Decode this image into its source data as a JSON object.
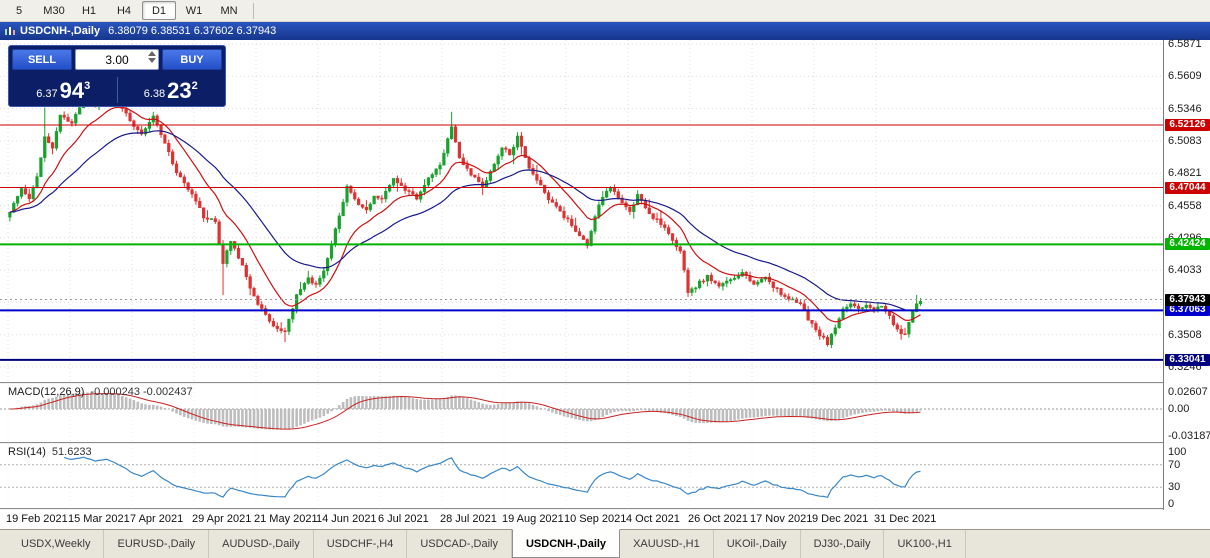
{
  "toolbar": {
    "timeframes": [
      {
        "label": "5",
        "active": false
      },
      {
        "label": "M30",
        "active": false
      },
      {
        "label": "H1",
        "active": false
      },
      {
        "label": "H4",
        "active": false
      },
      {
        "label": "D1",
        "active": true
      },
      {
        "label": "W1",
        "active": false
      },
      {
        "label": "MN",
        "active": false
      }
    ]
  },
  "chart_window": {
    "title": "USDCNH-,Daily",
    "ohlc": "6.38079 6.38531 6.37602 6.37943"
  },
  "trade_panel": {
    "sell_label": "SELL",
    "buy_label": "BUY",
    "volume": "3.00",
    "bid_small": "6.37",
    "bid_big": "94",
    "bid_sup": "3",
    "ask_small": "6.38",
    "ask_big": "23",
    "ask_sup": "2"
  },
  "price_axis": {
    "ticks": [
      "6.5871",
      "6.5609",
      "6.5346",
      "6.5083",
      "6.4821",
      "6.4558",
      "6.4296",
      "6.4033",
      "6.3771",
      "6.3508",
      "6.3246"
    ]
  },
  "levels": [
    {
      "price": 6.52126,
      "label": "6.52126",
      "color": "#cc0000",
      "width": 1
    },
    {
      "price": 6.47044,
      "label": "6.47044",
      "color": "#cc0000",
      "width": 1
    },
    {
      "price": 6.42424,
      "label": "6.42424",
      "color": "#00b400",
      "width": 2
    },
    {
      "price": 6.37063,
      "label": "6.37063",
      "color": "#0000cc",
      "width": 2
    },
    {
      "price": 6.33041,
      "label": "6.33041",
      "color": "#000080",
      "width": 2
    }
  ],
  "current_price": {
    "price": 6.37943,
    "label": "6.37943",
    "color": "#000000"
  },
  "macd": {
    "title": "MACD(12,26,9)",
    "values": "-0.000243 -0.002437",
    "axis": [
      "0.02607",
      "0.00",
      "-0.03187"
    ]
  },
  "rsi": {
    "title": "RSI(14)",
    "value": "51.6233",
    "axis": [
      "100",
      "70",
      "30",
      "0"
    ],
    "levels": [
      70,
      30
    ]
  },
  "date_axis": [
    "19 Feb 2021",
    "15 Mar 2021",
    "7 Apr 2021",
    "29 Apr 2021",
    "21 May 2021",
    "14 Jun 2021",
    "6 Jul 2021",
    "28 Jul 2021",
    "19 Aug 2021",
    "10 Sep 2021",
    "4 Oct 2021",
    "26 Oct 2021",
    "17 Nov 2021",
    "9 Dec 2021",
    "31 Dec 2021"
  ],
  "tabs": [
    {
      "label": "USDX,Weekly",
      "active": false
    },
    {
      "label": "EURUSD-,Daily",
      "active": false
    },
    {
      "label": "AUDUSD-,Daily",
      "active": false
    },
    {
      "label": "USDCHF-,H4",
      "active": false
    },
    {
      "label": "USDCAD-,Daily",
      "active": false
    },
    {
      "label": "USDCNH-,Daily",
      "active": true
    },
    {
      "label": "XAUUSD-,H1",
      "active": false
    },
    {
      "label": "UKOil-,Daily",
      "active": false
    },
    {
      "label": "DJ30-,Daily",
      "active": false
    },
    {
      "label": "UK100-,H1",
      "active": false
    }
  ],
  "colors": {
    "bull": "#18a22c",
    "bear": "#de3131",
    "ma_fast": "#cc1111",
    "ma_slow": "#1a1a8c",
    "macd_hist": "#bdbdbd",
    "macd_signal": "#cc2222",
    "rsi_line": "#3a87c8",
    "grid": "#dcdcdc"
  },
  "chart_data": {
    "type": "candlestick",
    "symbol": "USDCNH-",
    "timeframe": "Daily",
    "y_range": [
      6.3124,
      6.5874
    ],
    "candles_total": 236,
    "waypoints": [
      [
        0,
        6.452
      ],
      [
        3,
        6.47
      ],
      [
        5,
        6.462
      ],
      [
        7,
        6.478
      ],
      [
        9,
        6.512
      ],
      [
        11,
        6.503
      ],
      [
        13,
        6.528
      ],
      [
        16,
        6.522
      ],
      [
        19,
        6.543
      ],
      [
        22,
        6.536
      ],
      [
        25,
        6.548
      ],
      [
        28,
        6.54
      ],
      [
        31,
        6.525
      ],
      [
        34,
        6.514
      ],
      [
        37,
        6.528
      ],
      [
        40,
        6.507
      ],
      [
        43,
        6.482
      ],
      [
        46,
        6.47
      ],
      [
        48,
        6.458
      ],
      [
        50,
        6.447
      ],
      [
        53,
        6.442
      ],
      [
        55,
        6.408
      ],
      [
        57,
        6.428
      ],
      [
        59,
        6.414
      ],
      [
        61,
        6.398
      ],
      [
        63,
        6.382
      ],
      [
        65,
        6.371
      ],
      [
        68,
        6.358
      ],
      [
        71,
        6.352
      ],
      [
        74,
        6.382
      ],
      [
        77,
        6.397
      ],
      [
        79,
        6.391
      ],
      [
        81,
        6.402
      ],
      [
        84,
        6.438
      ],
      [
        87,
        6.47
      ],
      [
        89,
        6.461
      ],
      [
        92,
        6.452
      ],
      [
        94,
        6.464
      ],
      [
        96,
        6.461
      ],
      [
        99,
        6.477
      ],
      [
        102,
        6.469
      ],
      [
        105,
        6.461
      ],
      [
        108,
        6.477
      ],
      [
        111,
        6.489
      ],
      [
        114,
        6.52
      ],
      [
        116,
        6.494
      ],
      [
        119,
        6.481
      ],
      [
        122,
        6.471
      ],
      [
        125,
        6.489
      ],
      [
        127,
        6.504
      ],
      [
        129,
        6.497
      ],
      [
        131,
        6.511
      ],
      [
        134,
        6.487
      ],
      [
        137,
        6.471
      ],
      [
        140,
        6.457
      ],
      [
        143,
        6.447
      ],
      [
        146,
        6.436
      ],
      [
        149,
        6.424
      ],
      [
        152,
        6.457
      ],
      [
        155,
        6.471
      ],
      [
        158,
        6.459
      ],
      [
        160,
        6.451
      ],
      [
        162,
        6.464
      ],
      [
        165,
        6.449
      ],
      [
        168,
        6.441
      ],
      [
        171,
        6.427
      ],
      [
        173,
        6.419
      ],
      [
        175,
        6.385
      ],
      [
        177,
        6.39
      ],
      [
        180,
        6.399
      ],
      [
        183,
        6.389
      ],
      [
        186,
        6.397
      ],
      [
        189,
        6.401
      ],
      [
        192,
        6.391
      ],
      [
        195,
        6.397
      ],
      [
        198,
        6.387
      ],
      [
        201,
        6.379
      ],
      [
        204,
        6.377
      ],
      [
        206,
        6.364
      ],
      [
        209,
        6.351
      ],
      [
        211,
        6.344
      ],
      [
        213,
        6.357
      ],
      [
        215,
        6.371
      ],
      [
        217,
        6.377
      ],
      [
        219,
        6.371
      ],
      [
        221,
        6.374
      ],
      [
        223,
        6.371
      ],
      [
        225,
        6.375
      ],
      [
        227,
        6.367
      ],
      [
        229,
        6.354
      ],
      [
        231,
        6.351
      ],
      [
        233,
        6.371
      ],
      [
        235,
        6.3794
      ]
    ],
    "spikes": [
      {
        "i": 9,
        "high": 6.5355
      },
      {
        "i": 55,
        "low": 6.383
      },
      {
        "i": 71,
        "low": 6.3448
      },
      {
        "i": 114,
        "high": 6.532
      },
      {
        "i": 211,
        "low": 6.3412
      },
      {
        "i": 230,
        "low": 6.3468
      }
    ]
  }
}
